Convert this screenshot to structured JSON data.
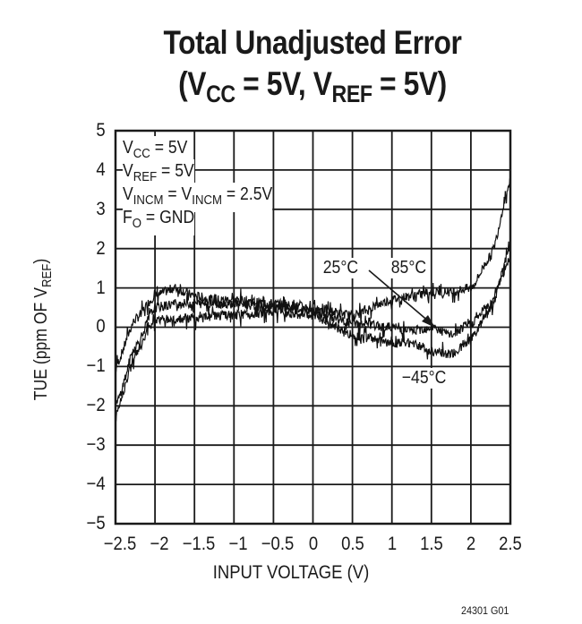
{
  "title": {
    "line1": "Total Unadjusted Error",
    "line2_prefix": "(V",
    "line2_sub1": "CC",
    "line2_mid": " = 5V, V",
    "line2_sub2": "REF",
    "line2_suffix": " = 5V)"
  },
  "conditions": [
    {
      "main": "V",
      "sub": "CC",
      "rest": " = 5V"
    },
    {
      "main": "V",
      "sub": "REF",
      "rest": " = 5V"
    },
    {
      "main": "V",
      "sub": "INCM",
      "rest": " = V",
      "sub2": "INCM",
      "rest2": " = 2.5V"
    },
    {
      "main": "F",
      "sub": "O",
      "rest": " = GND"
    }
  ],
  "annotations": {
    "t25": "25°C",
    "t85": "85°C",
    "tm45": "−45°C"
  },
  "axes": {
    "xlabel": "INPUT VOLTAGE (V)",
    "ylabel_main": "TUE (ppm OF V",
    "ylabel_sub": "REF",
    "ylabel_end": ")",
    "xticks": [
      "−2.5",
      "−2",
      "−1.5",
      "−1",
      "−0.5",
      "0",
      "0.5",
      "1",
      "1.5",
      "2",
      "2.5"
    ],
    "yticks": [
      "5",
      "4",
      "3",
      "2",
      "1",
      "0",
      "−1",
      "−2",
      "−3",
      "−4",
      "−5"
    ]
  },
  "figure_code": "24301 G01",
  "chart_data": {
    "type": "line",
    "title": "Total Unadjusted Error (VCC = 5V, VREF = 5V)",
    "xlabel": "INPUT VOLTAGE (V)",
    "ylabel": "TUE (ppm OF VREF)",
    "xlim": [
      -2.5,
      2.5
    ],
    "ylim": [
      -5,
      5
    ],
    "grid": true,
    "legend": "inline annotations",
    "x": [
      -2.5,
      -2.25,
      -2.0,
      -1.75,
      -1.5,
      -1.25,
      -1.0,
      -0.5,
      0.0,
      0.5,
      1.0,
      1.25,
      1.5,
      1.75,
      2.0,
      2.25,
      2.5
    ],
    "series": [
      {
        "name": "85°C",
        "values": [
          -1.0,
          0.2,
          0.8,
          1.0,
          0.8,
          0.7,
          0.7,
          0.6,
          0.5,
          0.3,
          0.7,
          0.8,
          0.9,
          0.9,
          1.0,
          1.8,
          3.7
        ]
      },
      {
        "name": "25°C",
        "values": [
          -2.0,
          -0.5,
          0.5,
          0.6,
          0.6,
          0.6,
          0.6,
          0.5,
          0.4,
          0.1,
          0.0,
          -0.1,
          0.0,
          -0.2,
          0.1,
          0.6,
          2.0
        ]
      },
      {
        "name": "−45°C",
        "values": [
          -2.2,
          -0.7,
          0.2,
          0.2,
          0.2,
          0.3,
          0.3,
          0.4,
          0.3,
          -0.2,
          -0.4,
          -0.4,
          -0.6,
          -0.7,
          -0.3,
          0.5,
          1.8
        ]
      }
    ],
    "annotations": [
      "VCC = 5V",
      "VREF = 5V",
      "VINCM = VINCM = 2.5V",
      "FO = GND",
      "25°C",
      "85°C",
      "−45°C"
    ]
  }
}
